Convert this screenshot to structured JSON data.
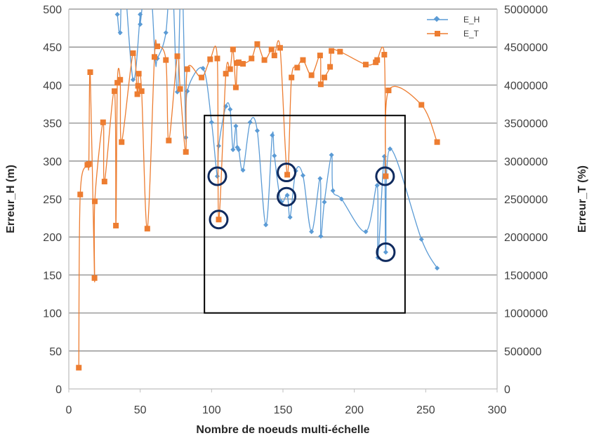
{
  "chart_data": {
    "type": "line",
    "xlabel": "Nombre de noeuds multi-échelle",
    "ylabel": "Erreur_H (m)",
    "y2label": "Erreur_T (%)",
    "xlim": [
      0,
      300
    ],
    "ylim": [
      0,
      500
    ],
    "y2lim": [
      0,
      5000000
    ],
    "xticks": [
      "0",
      "50",
      "100",
      "150",
      "200",
      "250",
      "300"
    ],
    "yticks": [
      "0",
      "50",
      "100",
      "150",
      "200",
      "250",
      "300",
      "350",
      "400",
      "450",
      "500"
    ],
    "y2ticks": [
      "0",
      "500000",
      "1000000",
      "1500000",
      "2000000",
      "2500000",
      "3000000",
      "3500000",
      "4000000",
      "4500000",
      "5000000"
    ],
    "grid": true,
    "legend_position": "top-right",
    "series": [
      {
        "name": "E_H",
        "axis": "left",
        "color": "#5B9BD5",
        "marker": "diamond",
        "points": [
          [
            34,
            493
          ],
          [
            36,
            469
          ],
          [
            38,
            560
          ],
          [
            45,
            407
          ],
          [
            50,
            493
          ],
          [
            50,
            480
          ],
          [
            56,
            560
          ],
          [
            60.5,
            435
          ],
          [
            62,
            435
          ],
          [
            68,
            469
          ],
          [
            72,
            560
          ],
          [
            76,
            391
          ],
          [
            79,
            560
          ],
          [
            82,
            331
          ],
          [
            83,
            392
          ],
          [
            94,
            422
          ],
          [
            100,
            351
          ],
          [
            104,
            280
          ],
          [
            105,
            320
          ],
          [
            110,
            372
          ],
          [
            113,
            368
          ],
          [
            115,
            315
          ],
          [
            117,
            346
          ],
          [
            118,
            318
          ],
          [
            119,
            315
          ],
          [
            122,
            288
          ],
          [
            127,
            351
          ],
          [
            132,
            340
          ],
          [
            138,
            216
          ],
          [
            142.5,
            334
          ],
          [
            144,
            307
          ],
          [
            148.5,
            247
          ],
          [
            153,
            255
          ],
          [
            155,
            226
          ],
          [
            159,
            287
          ],
          [
            164,
            281
          ],
          [
            170,
            207
          ],
          [
            176,
            277
          ],
          [
            176.5,
            201
          ],
          [
            179,
            246
          ],
          [
            184,
            308
          ],
          [
            185,
            261
          ],
          [
            191,
            250
          ],
          [
            208,
            207
          ],
          [
            216,
            268
          ],
          [
            216.5,
            173
          ],
          [
            221,
            306
          ],
          [
            222,
            180
          ],
          [
            225,
            316
          ],
          [
            247,
            197
          ],
          [
            258,
            159
          ]
        ]
      },
      {
        "name": "E_T",
        "axis": "right",
        "color": "#ED7D31",
        "marker": "square",
        "points": [
          [
            7,
            280000
          ],
          [
            8,
            2560000
          ],
          [
            13,
            2950000
          ],
          [
            14,
            2960000
          ],
          [
            15,
            4170000
          ],
          [
            18,
            1460000
          ],
          [
            18.2,
            2470000
          ],
          [
            24,
            3510000
          ],
          [
            25,
            2730000
          ],
          [
            32,
            3920000
          ],
          [
            33,
            2150000
          ],
          [
            34,
            4030000
          ],
          [
            36,
            4070000
          ],
          [
            37,
            3250000
          ],
          [
            45,
            4420000
          ],
          [
            48,
            3880000
          ],
          [
            48.5,
            3990000
          ],
          [
            49,
            4150000
          ],
          [
            51,
            3920000
          ],
          [
            55,
            2110000
          ],
          [
            60,
            4370000
          ],
          [
            62,
            4510000
          ],
          [
            68,
            4330000
          ],
          [
            70,
            3270000
          ],
          [
            76,
            4380000
          ],
          [
            78,
            3950000
          ],
          [
            82,
            3120000
          ],
          [
            83,
            4210000
          ],
          [
            93,
            4100000
          ],
          [
            99,
            4340000
          ],
          [
            104,
            4350000
          ],
          [
            105,
            2230000
          ],
          [
            110,
            4150000
          ],
          [
            113,
            4210000
          ],
          [
            115,
            4470000
          ],
          [
            117,
            3970000
          ],
          [
            118,
            4290000
          ],
          [
            119,
            4300000
          ],
          [
            122,
            4280000
          ],
          [
            128,
            4350000
          ],
          [
            132,
            4540000
          ],
          [
            137,
            4330000
          ],
          [
            142,
            4470000
          ],
          [
            144,
            4390000
          ],
          [
            148,
            4490000
          ],
          [
            153,
            2820000
          ],
          [
            156,
            4100000
          ],
          [
            160,
            4230000
          ],
          [
            164,
            4330000
          ],
          [
            170,
            4130000
          ],
          [
            176,
            4390000
          ],
          [
            176.5,
            4010000
          ],
          [
            179,
            4100000
          ],
          [
            183,
            4240000
          ],
          [
            184,
            4450000
          ],
          [
            190,
            4440000
          ],
          [
            208,
            4270000
          ],
          [
            215,
            4300000
          ],
          [
            216,
            4330000
          ],
          [
            221,
            4400000
          ],
          [
            222,
            2800000
          ],
          [
            224,
            3930000
          ],
          [
            247,
            3740000
          ],
          [
            258,
            3250000
          ]
        ]
      }
    ],
    "annotations": {
      "box": {
        "x": [
          95,
          235.5
        ],
        "y": [
          100,
          360
        ]
      },
      "circles": [
        [
          104,
          280
        ],
        [
          105,
          223
        ],
        [
          152.5,
          285
        ],
        [
          152.5,
          253
        ],
        [
          221.5,
          280
        ],
        [
          222,
          180
        ]
      ]
    }
  }
}
